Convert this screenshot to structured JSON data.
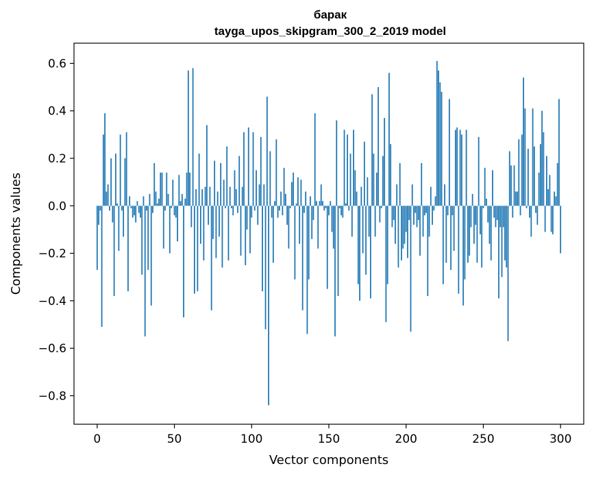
{
  "chart_data": {
    "type": "bar",
    "title": "барак",
    "subtitle": "tayga_upos_skipgram_300_2_2019 model",
    "xlabel": "Vector components",
    "ylabel": "Components values",
    "xlim": [
      -15,
      315
    ],
    "ylim": [
      -0.92,
      0.685
    ],
    "xticks": [
      0,
      50,
      100,
      150,
      200,
      250,
      300
    ],
    "xtick_labels": [
      "0",
      "50",
      "100",
      "150",
      "200",
      "250",
      "300"
    ],
    "yticks": [
      -0.8,
      -0.6,
      -0.4,
      -0.2,
      0.0,
      0.2,
      0.4,
      0.6
    ],
    "ytick_labels": [
      "−0.8",
      "−0.6",
      "−0.4",
      "−0.2",
      "0.0",
      "0.2",
      "0.4",
      "0.6"
    ],
    "bar_color": "#1f77b4",
    "values": [
      -0.27,
      -0.08,
      -0.02,
      -0.51,
      0.3,
      0.39,
      0.06,
      0.09,
      -0.02,
      0.2,
      -0.07,
      -0.38,
      0.22,
      0.01,
      -0.19,
      0.3,
      -0.02,
      -0.13,
      0.2,
      0.31,
      -0.36,
      0.04,
      -0.01,
      -0.05,
      -0.04,
      -0.07,
      0.02,
      -0.03,
      -0.05,
      -0.29,
      0.04,
      -0.55,
      -0.02,
      -0.27,
      0.05,
      -0.42,
      -0.03,
      0.18,
      0.06,
      0.01,
      0.03,
      0.14,
      0.14,
      -0.18,
      -0.02,
      0.14,
      0.05,
      -0.2,
      -0.01,
      0.11,
      -0.04,
      -0.05,
      -0.15,
      0.13,
      0.02,
      0.05,
      -0.47,
      0.03,
      0.14,
      0.57,
      0.14,
      -0.09,
      0.58,
      -0.37,
      0.07,
      -0.36,
      0.22,
      -0.16,
      0.07,
      -0.23,
      0.08,
      0.34,
      -0.08,
      0.08,
      -0.44,
      -0.14,
      0.19,
      -0.22,
      0.06,
      -0.13,
      0.18,
      -0.26,
      0.11,
      -0.01,
      0.25,
      -0.23,
      0.08,
      -0.01,
      -0.04,
      0.15,
      0.07,
      -0.03,
      0.21,
      -0.21,
      0.08,
      0.31,
      -0.25,
      -0.1,
      0.33,
      -0.2,
      -0.05,
      0.31,
      -0.02,
      0.15,
      -0.08,
      0.09,
      0.29,
      -0.36,
      0.09,
      -0.52,
      0.46,
      -0.84,
      0.23,
      -0.05,
      -0.24,
      0.02,
      0.28,
      -0.05,
      -0.02,
      0.06,
      -0.04,
      0.16,
      0.05,
      -0.08,
      -0.18,
      -0.01,
      0.1,
      0.14,
      -0.31,
      0.01,
      0.12,
      -0.16,
      0.11,
      -0.44,
      -0.03,
      0.06,
      -0.54,
      -0.31,
      0.04,
      -0.14,
      -0.06,
      0.39,
      0.02,
      -0.18,
      0.02,
      0.09,
      0.02,
      -0.02,
      -0.01,
      -0.35,
      -0.04,
      0.02,
      -0.11,
      -0.18,
      -0.55,
      0.36,
      -0.38,
      -0.01,
      -0.04,
      -0.05,
      0.32,
      0.01,
      0.3,
      -0.02,
      0.22,
      -0.13,
      0.32,
      0.15,
      0.06,
      -0.33,
      -0.4,
      0.08,
      -0.2,
      0.27,
      -0.29,
      0.12,
      -0.13,
      -0.39,
      0.47,
      0.22,
      -0.13,
      0.14,
      0.5,
      -0.07,
      -0.01,
      0.21,
      0.37,
      -0.49,
      -0.33,
      0.56,
      0.26,
      -0.09,
      -0.06,
      -0.16,
      0.09,
      -0.26,
      0.18,
      -0.23,
      -0.18,
      -0.16,
      -0.11,
      -0.22,
      -0.06,
      -0.53,
      0.09,
      -0.08,
      -0.03,
      -0.09,
      -0.06,
      -0.21,
      0.18,
      -0.13,
      -0.04,
      -0.03,
      -0.38,
      -0.13,
      0.08,
      -0.08,
      -0.02,
      0.04,
      0.61,
      0.57,
      0.52,
      0.48,
      -0.33,
      0.09,
      -0.24,
      -0.04,
      0.45,
      -0.27,
      -0.04,
      -0.19,
      0.32,
      0.33,
      -0.37,
      0.32,
      0.3,
      -0.42,
      -0.31,
      0.32,
      -0.24,
      -0.21,
      -0.09,
      0.05,
      -0.16,
      -0.08,
      -0.24,
      0.29,
      -0.12,
      -0.26,
      -0.01,
      0.16,
      0.03,
      -0.07,
      -0.16,
      -0.23,
      0.15,
      -0.05,
      -0.09,
      -0.06,
      -0.39,
      -0.09,
      -0.3,
      -0.09,
      -0.23,
      -0.26,
      -0.57,
      0.23,
      0.17,
      -0.05,
      0.17,
      0.06,
      0.06,
      0.28,
      -0.04,
      0.3,
      0.54,
      0.41,
      -0.01,
      0.24,
      -0.05,
      -0.13,
      0.41,
      0.25,
      -0.03,
      -0.08,
      0.14,
      0.26,
      0.4,
      0.31,
      -0.11,
      0.21,
      0.07,
      0.13,
      -0.11,
      -0.12,
      0.06,
      0.04,
      0.18,
      0.45,
      -0.2
    ]
  }
}
